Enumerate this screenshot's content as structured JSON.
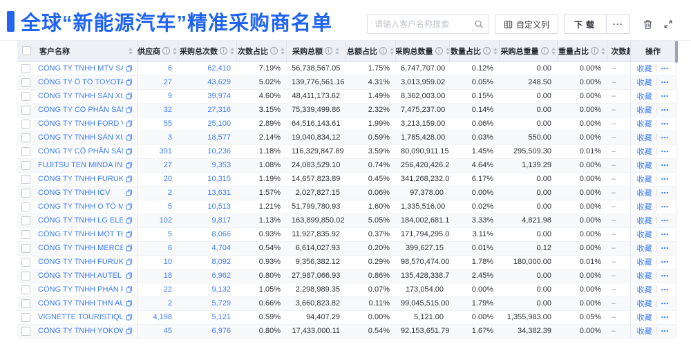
{
  "header": {
    "title": "全球“新能源汽车”精准采购商名单"
  },
  "toolbar": {
    "search_placeholder": "请输入客户名称搜索",
    "customize_columns": "自定义列",
    "download": "下载",
    "more": "···",
    "icons": [
      "search-icon",
      "customize-columns-icon",
      "more-icon",
      "delete-icon",
      "fullscreen-icon"
    ]
  },
  "colors": {
    "accent_blue": "#2065f0",
    "link_blue": "#3e7cf7",
    "header_bg": "#eef0f6"
  },
  "table": {
    "columns": [
      {
        "key": "name",
        "label": "客户名称",
        "info": false,
        "sortable": true
      },
      {
        "key": "supplier",
        "label": "供应商",
        "info": true,
        "sortable": true
      },
      {
        "key": "times",
        "label": "采购总次数",
        "info": true,
        "sortable": true
      },
      {
        "key": "times_pct",
        "label": "次数占比",
        "info": true,
        "sortable": true
      },
      {
        "key": "amount",
        "label": "采购总额",
        "info": true,
        "sortable": true
      },
      {
        "key": "amount_pct",
        "label": "总额占比",
        "info": true,
        "sortable": true
      },
      {
        "key": "qty",
        "label": "采购总数量",
        "info": true,
        "sortable": true
      },
      {
        "key": "qty_pct",
        "label": "数量占比",
        "info": true,
        "sortable": true
      },
      {
        "key": "weight",
        "label": "采购总重量",
        "info": true,
        "sortable": true
      },
      {
        "key": "weight_pct",
        "label": "重量占比",
        "info": true,
        "sortable": true
      },
      {
        "key": "trend",
        "label": "次数趋势",
        "info": false,
        "sortable": false
      },
      {
        "key": "action",
        "label": "操作",
        "info": false,
        "sortable": false
      }
    ],
    "row_actions": {
      "favorite": "收藏",
      "more": "⋯"
    },
    "rows": [
      {
        "name": "CÔNG TY TNHH MTV SẢN XUẤ...",
        "supplier": "6",
        "times": "62,410",
        "times_pct": "7.19%",
        "amount": "56,738,567.05",
        "amount_pct": "1.75%",
        "qty": "6,747,707.00",
        "qty_pct": "0.12%",
        "weight": "0.00",
        "weight_pct": "0.00%",
        "trend": "–"
      },
      {
        "name": "CÔNG TY Ô TÔ TOYOTA VIỆT ...",
        "supplier": "27",
        "times": "43,629",
        "times_pct": "5.02%",
        "amount": "139,776,561.16",
        "amount_pct": "4.31%",
        "qty": "3,013,959.02",
        "qty_pct": "0.05%",
        "weight": "248.50",
        "weight_pct": "0.00%",
        "trend": "–"
      },
      {
        "name": "CÔNG TY TNHH SẢN XUẤT VÀ ...",
        "supplier": "9",
        "times": "39,974",
        "times_pct": "4.60%",
        "amount": "48,411,173.62",
        "amount_pct": "1.49%",
        "qty": "8,362,003.00",
        "qty_pct": "0.15%",
        "weight": "0.00",
        "weight_pct": "0.00%",
        "trend": "–"
      },
      {
        "name": "CÔNG TY CỔ PHẦN SẢN XUẤT...",
        "supplier": "32",
        "times": "27,316",
        "times_pct": "3.15%",
        "amount": "75,339,499.86",
        "amount_pct": "2.32%",
        "qty": "7,475,237.00",
        "qty_pct": "0.14%",
        "weight": "0.00",
        "weight_pct": "0.00%",
        "trend": "–"
      },
      {
        "name": "CÔNG TY TNHH FORD VIỆT NAM",
        "supplier": "55",
        "times": "25,100",
        "times_pct": "2.89%",
        "amount": "64,516,143.61",
        "amount_pct": "1.99%",
        "qty": "3,213,159.00",
        "qty_pct": "0.06%",
        "weight": "0.00",
        "weight_pct": "0.00%",
        "trend": "–"
      },
      {
        "name": "CÔNG TY TNHH SẢN XUẤT VÀ ...",
        "supplier": "3",
        "times": "18,577",
        "times_pct": "2.14%",
        "amount": "19,040,834.12",
        "amount_pct": "0.59%",
        "qty": "1,785,428.00",
        "qty_pct": "0.03%",
        "weight": "550.00",
        "weight_pct": "0.00%",
        "trend": "–"
      },
      {
        "name": "CÔNG TY CỔ PHẦN SẢN XUẤT...",
        "supplier": "391",
        "times": "10,236",
        "times_pct": "1.18%",
        "amount": "116,329,847.89",
        "amount_pct": "3.59%",
        "qty": "80,090,911.15",
        "qty_pct": "1.45%",
        "weight": "295,509.30",
        "weight_pct": "0.01%",
        "trend": "–"
      },
      {
        "name": "FUJITSU TEN MINDA INDIA PVT...",
        "supplier": "27",
        "times": "9,353",
        "times_pct": "1.08%",
        "amount": "24,083,529.10",
        "amount_pct": "0.74%",
        "qty": "256,420,426.29",
        "qty_pct": "4.64%",
        "weight": "1,139.29",
        "weight_pct": "0.00%",
        "trend": "–"
      },
      {
        "name": "CÔNG TY TNHH FURUKAWA A...",
        "supplier": "20",
        "times": "10,315",
        "times_pct": "1.19%",
        "amount": "14,657,823.89",
        "amount_pct": "0.45%",
        "qty": "341,268,232.00",
        "qty_pct": "6.17%",
        "weight": "0.00",
        "weight_pct": "0.00%",
        "trend": "–"
      },
      {
        "name": "CÔNG TY TNHH ICV",
        "supplier": "2",
        "times": "13,631",
        "times_pct": "1.57%",
        "amount": "2,027,827.15",
        "amount_pct": "0.06%",
        "qty": "97,378.00",
        "qty_pct": "0.00%",
        "weight": "0.00",
        "weight_pct": "0.00%",
        "trend": "–"
      },
      {
        "name": "CÔNG TY TNHH Ô TÔ MITSUBI...",
        "supplier": "5",
        "times": "10,513",
        "times_pct": "1.21%",
        "amount": "51,799,780.93",
        "amount_pct": "1.60%",
        "qty": "1,335,516.00",
        "qty_pct": "0.02%",
        "weight": "0.00",
        "weight_pct": "0.00%",
        "trend": "–"
      },
      {
        "name": "CÔNG TY TNHH LG ELECTRON...",
        "supplier": "102",
        "times": "9,817",
        "times_pct": "1.13%",
        "amount": "163,899,850.02",
        "amount_pct": "5.05%",
        "qty": "184,002,681.15",
        "qty_pct": "3.33%",
        "weight": "4,821.98",
        "weight_pct": "0.00%",
        "trend": "–"
      },
      {
        "name": "CÔNG TY TNHH MỘT THÀNH V...",
        "supplier": "5",
        "times": "8,066",
        "times_pct": "0.93%",
        "amount": "11,927,835.92",
        "amount_pct": "0.37%",
        "qty": "171,794,295.00",
        "qty_pct": "3.11%",
        "weight": "0.00",
        "weight_pct": "0.00%",
        "trend": "–"
      },
      {
        "name": "CÔNG TY TNHH MERCEDES–B...",
        "supplier": "6",
        "times": "4,704",
        "times_pct": "0.54%",
        "amount": "6,614,027.93",
        "amount_pct": "0.20%",
        "qty": "399,627.15",
        "qty_pct": "0.01%",
        "weight": "0.12",
        "weight_pct": "0.00%",
        "trend": "–"
      },
      {
        "name": "CÔNG TY TNHH FURUKAWA A...",
        "supplier": "10",
        "times": "8,092",
        "times_pct": "0.93%",
        "amount": "9,356,382.12",
        "amount_pct": "0.29%",
        "qty": "98,570,474.00",
        "qty_pct": "1.78%",
        "weight": "180,000.00",
        "weight_pct": "0.01%",
        "trend": "–"
      },
      {
        "name": "CÔNG TY TNHH AUTEL VIỆT N...",
        "supplier": "18",
        "times": "6,962",
        "times_pct": "0.80%",
        "amount": "27,987,066.93",
        "amount_pct": "0.86%",
        "qty": "135,428,338.71",
        "qty_pct": "2.45%",
        "weight": "0.00",
        "weight_pct": "0.00%",
        "trend": "–"
      },
      {
        "name": "CÔNG TY TNHH PHÂN PHỐI T...",
        "supplier": "22",
        "times": "9,132",
        "times_pct": "1.05%",
        "amount": "2,298,989.35",
        "amount_pct": "0.07%",
        "qty": "173,054.00",
        "qty_pct": "0.00%",
        "weight": "0.00",
        "weight_pct": "0.00%",
        "trend": "–"
      },
      {
        "name": "CÔNG TY TNHH THN AUTOPAR...",
        "supplier": "2",
        "times": "5,729",
        "times_pct": "0.66%",
        "amount": "3,660,823.82",
        "amount_pct": "0.11%",
        "qty": "99,045,515.00",
        "qty_pct": "1.79%",
        "weight": "0.00",
        "weight_pct": "0.00%",
        "trend": "–"
      },
      {
        "name": "VIGNETTE TOURISTIQUE G UNI...",
        "supplier": "4,198",
        "times": "5,121",
        "times_pct": "0.59%",
        "amount": "94,407.29",
        "amount_pct": "0.00%",
        "qty": "5,121.00",
        "qty_pct": "0.00%",
        "weight": "1,355,983.00",
        "weight_pct": "0.05%",
        "trend": "–"
      },
      {
        "name": "CÔNG TY TNHH YOKOWO VIỆT...",
        "supplier": "45",
        "times": "6,976",
        "times_pct": "0.80%",
        "amount": "17,433,000.11",
        "amount_pct": "0.54%",
        "qty": "92,153,651.79",
        "qty_pct": "1.67%",
        "weight": "34,382.39",
        "weight_pct": "0.00%",
        "trend": "–"
      }
    ]
  }
}
